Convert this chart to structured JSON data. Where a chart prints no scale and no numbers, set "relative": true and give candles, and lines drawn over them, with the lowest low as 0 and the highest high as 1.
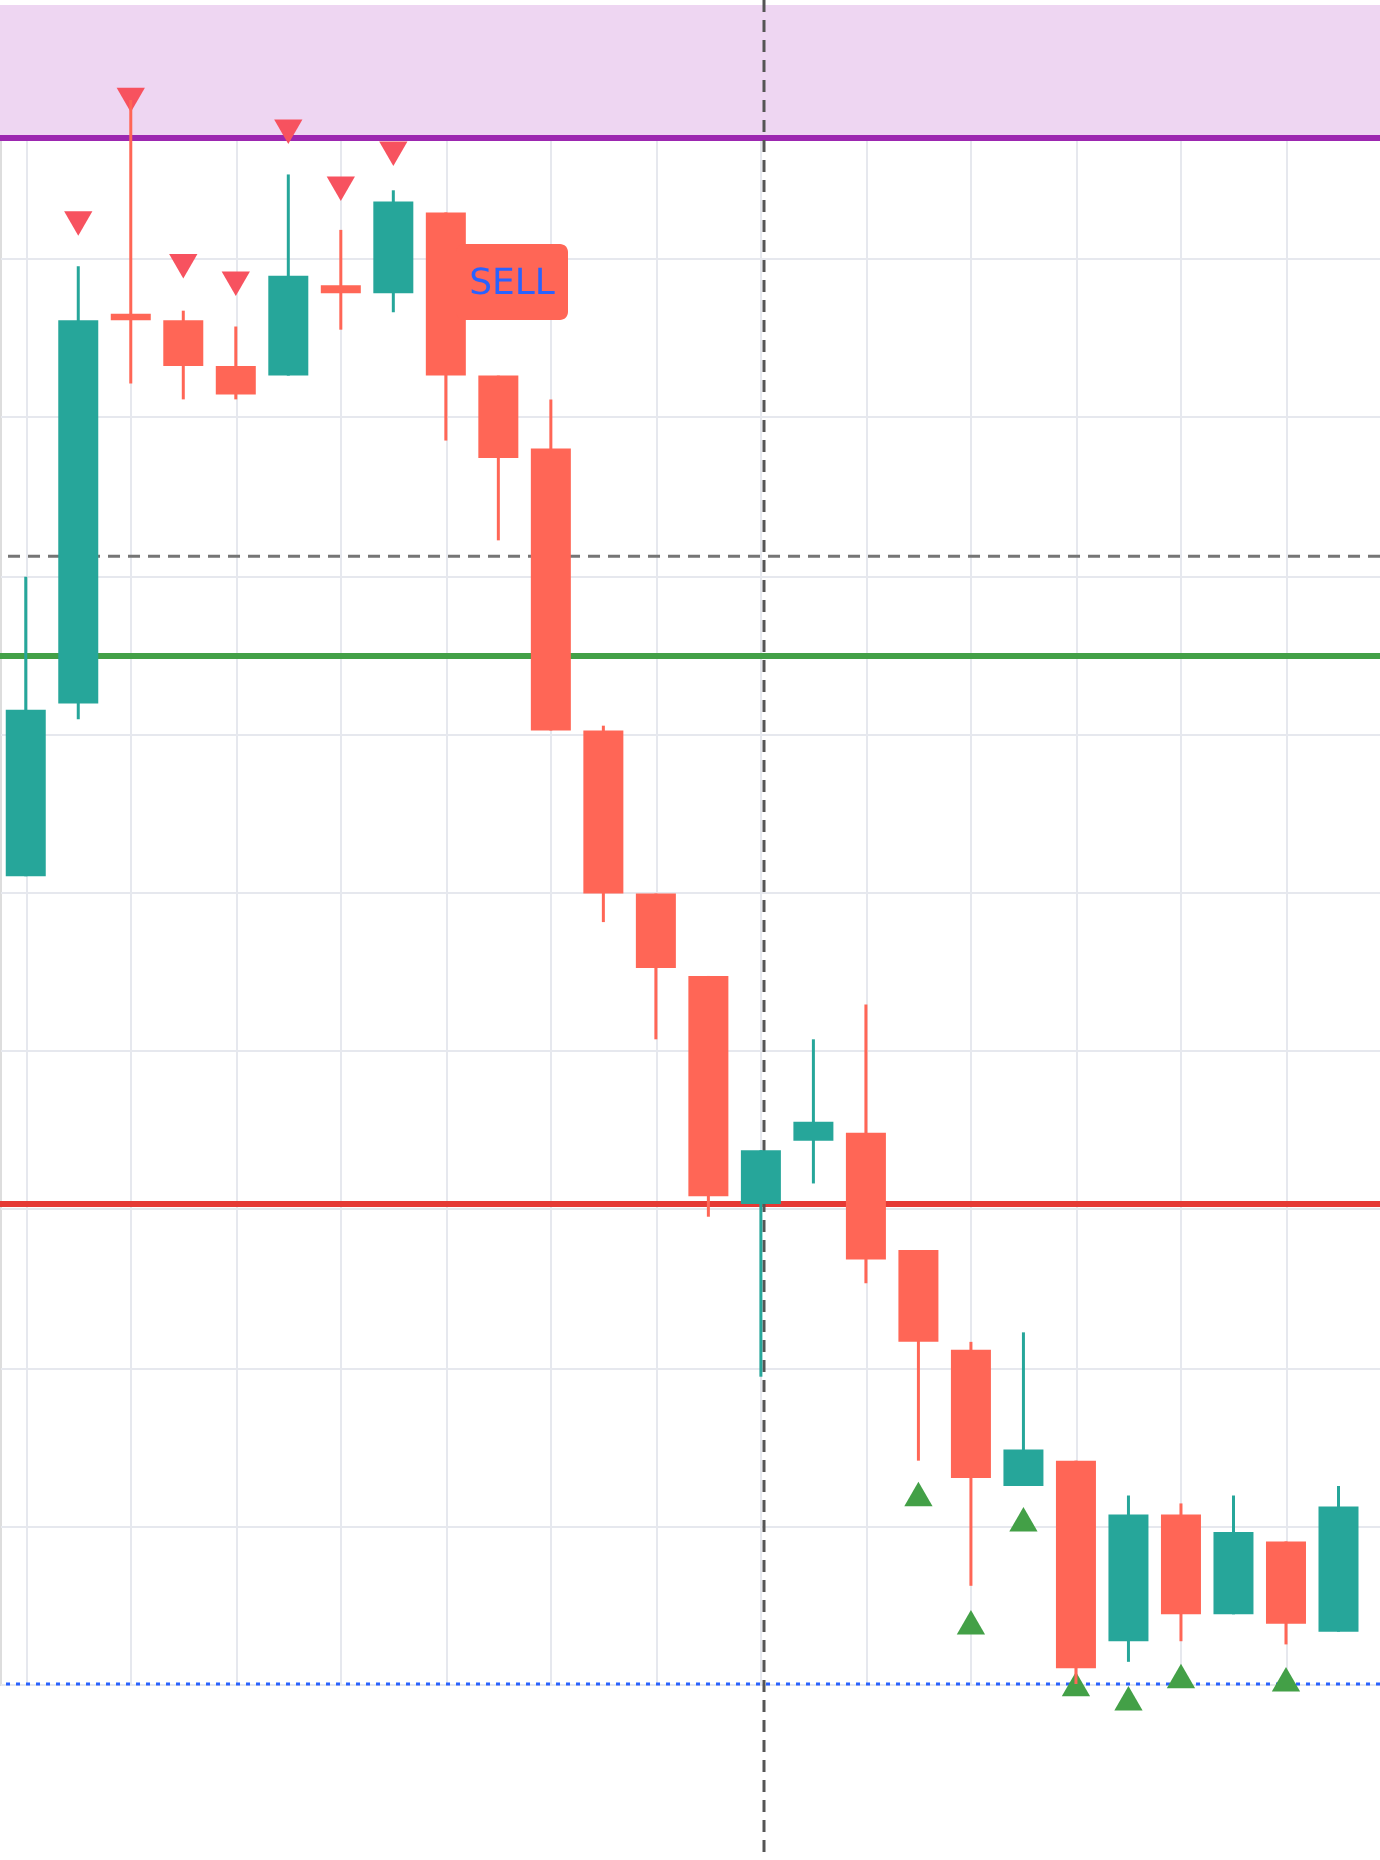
{
  "chart_data": {
    "type": "candlestick",
    "relative": true,
    "tick_labels": false,
    "grid": true,
    "categories": [
      null,
      null,
      null,
      null,
      null,
      null,
      null,
      null,
      null,
      null,
      null,
      null,
      null,
      null,
      null,
      null,
      null,
      null,
      null,
      null,
      null,
      null,
      null,
      null,
      null,
      null
    ],
    "ohlc": [
      [
        0.51,
        0.699,
        0.51,
        0.615
      ],
      [
        0.619,
        0.895,
        0.609,
        0.861
      ],
      [
        0.865,
        1.0,
        0.821,
        0.861
      ],
      [
        0.861,
        0.867,
        0.811,
        0.832
      ],
      [
        0.832,
        0.857,
        0.811,
        0.814
      ],
      [
        0.826,
        0.953,
        0.826,
        0.889
      ],
      [
        0.883,
        0.918,
        0.855,
        0.878
      ],
      [
        0.878,
        0.943,
        0.866,
        0.936
      ],
      [
        0.929,
        0.929,
        0.785,
        0.826
      ],
      [
        0.826,
        0.826,
        0.722,
        0.774
      ],
      [
        0.78,
        0.811,
        0.602,
        0.602
      ],
      [
        0.602,
        0.605,
        0.481,
        0.499
      ],
      [
        0.499,
        0.499,
        0.407,
        0.452
      ],
      [
        0.447,
        0.447,
        0.295,
        0.308
      ],
      [
        0.303,
        0.337,
        0.194,
        0.337
      ],
      [
        0.343,
        0.407,
        0.316,
        0.355
      ],
      [
        0.348,
        0.429,
        0.253,
        0.268
      ],
      [
        0.274,
        0.274,
        0.141,
        0.216
      ],
      [
        0.211,
        0.216,
        0.062,
        0.13
      ],
      [
        0.125,
        0.222,
        0.125,
        0.148
      ],
      [
        0.141,
        0.141,
        0.0,
        0.01
      ],
      [
        0.027,
        0.119,
        0.014,
        0.107
      ],
      [
        0.107,
        0.114,
        0.027,
        0.044
      ],
      [
        0.044,
        0.119,
        0.044,
        0.096
      ],
      [
        0.09,
        0.09,
        0.025,
        0.038
      ],
      [
        0.033,
        0.125,
        0.033,
        0.112
      ]
    ],
    "colors": [
      "#26a69a",
      "#26a69a",
      "#ff6656",
      "#ff6656",
      "#ff6656",
      "#26a69a",
      "#ff6656",
      "#26a69a",
      "#ff6656",
      "#ff6656",
      "#ff6656",
      "#ff6656",
      "#ff6656",
      "#ff6656",
      "#26a69a",
      "#26a69a",
      "#ff6656",
      "#ff6656",
      "#ff6656",
      "#26a69a",
      "#ff6656",
      "#26a69a",
      "#ff6656",
      "#26a69a",
      "#ff6656",
      "#26a69a"
    ],
    "series": [
      {
        "type": "scatter",
        "marker": "triangle",
        "color": "#f7525f",
        "values": [
          null,
          0.922,
          1.0,
          0.895,
          0.884,
          0.98,
          0.944,
          0.966,
          null,
          null,
          null,
          null,
          null,
          null,
          null,
          null,
          null,
          null,
          null,
          null,
          null,
          null,
          null,
          null,
          null,
          null
        ]
      },
      {
        "type": "scatter",
        "marker": "triangle",
        "color": "#43a047",
        "values": [
          null,
          null,
          null,
          null,
          null,
          null,
          null,
          null,
          null,
          null,
          null,
          null,
          null,
          null,
          null,
          null,
          null,
          0.12,
          0.039,
          0.104,
          0.0,
          -0.009,
          0.005,
          null,
          0.003,
          null
        ]
      }
    ],
    "ref_lines": [
      {
        "axis": "y",
        "value": 0.976,
        "color": "#9c27b0",
        "line_style": "solid"
      },
      {
        "axis": "y",
        "value": 0.649,
        "color": "#43a047",
        "line_style": "solid"
      },
      {
        "axis": "y",
        "value": 0.303,
        "color": "#e53935",
        "line_style": "solid"
      },
      {
        "axis": "y",
        "value": 0.0,
        "color": "#2962ff",
        "line_style": "dotted"
      },
      {
        "axis": "y",
        "value": 0.712,
        "color": "#757575",
        "line_style": "dashed"
      }
    ],
    "bands": [
      {
        "axis": "y",
        "from": 0.976,
        "to": 1.06,
        "color": "#eed6f2"
      }
    ],
    "annotations": [
      "SELL"
    ]
  }
}
